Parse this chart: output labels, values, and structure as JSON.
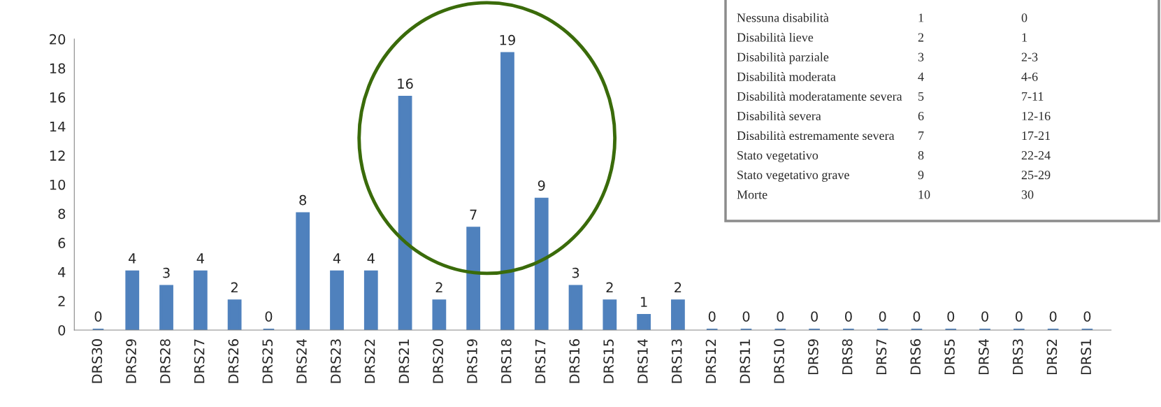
{
  "chart_data": {
    "type": "bar",
    "categories": [
      "DRS30",
      "DRS29",
      "DRS28",
      "DRS27",
      "DRS26",
      "DRS25",
      "DRS24",
      "DRS23",
      "DRS22",
      "DRS21",
      "DRS20",
      "DRS19",
      "DRS18",
      "DRS17",
      "DRS16",
      "DRS15",
      "DRS14",
      "DRS13",
      "DRS12",
      "DRS11",
      "DRS10",
      "DRS9",
      "DRS8",
      "DRS7",
      "DRS6",
      "DRS5",
      "DRS4",
      "DRS3",
      "DRS2",
      "DRS1"
    ],
    "values": [
      0,
      4,
      3,
      4,
      2,
      0,
      8,
      4,
      4,
      16,
      2,
      7,
      19,
      9,
      3,
      2,
      1,
      2,
      0,
      0,
      0,
      0,
      0,
      0,
      0,
      0,
      0,
      0,
      0,
      0
    ],
    "color": "#4f81bd",
    "ylim": [
      0,
      20
    ],
    "yticks": [
      0,
      2,
      4,
      6,
      8,
      10,
      12,
      14,
      16,
      18,
      20
    ],
    "data_labels": true,
    "grid": false,
    "annotations": [
      "Nessuna disabilità",
      "1",
      "0",
      "Disabilità lieve",
      "2",
      "1",
      "Disabilità parziale",
      "3",
      "2-3",
      "Disabilità moderata",
      "4",
      "4-6",
      "Disabilità moderatamente severa",
      "5",
      "7-11",
      "Disabilità severa",
      "6",
      "12-16",
      "Disabilità estremamente severa",
      "7",
      "17-21",
      "Stato vegetativo",
      "8",
      "22-24",
      "Stato vegetativo grave",
      "9",
      "25-29",
      "Morte",
      "10",
      "30"
    ]
  }
}
